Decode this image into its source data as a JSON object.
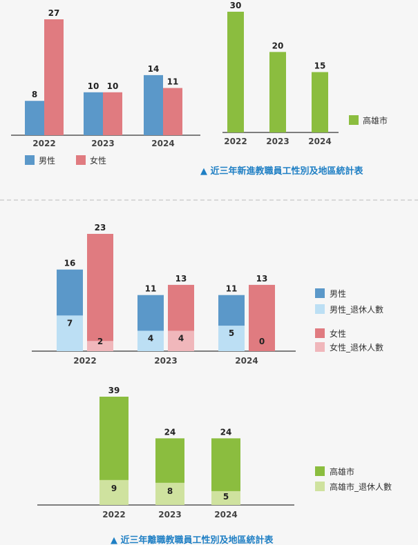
{
  "colors": {
    "male": "#5b98c9",
    "female": "#e07b80",
    "male_retired": "#bcdff4",
    "female_retired": "#f0b7bb",
    "kaohsiung": "#8bbd3f",
    "kaohsiung_retired": "#cfe29f",
    "caption": "#1f7fc4",
    "axis": "#555555",
    "divider": "#bbbbbb"
  },
  "captions": {
    "new_hires": "▲ 近三年新進教職員工性別及地區統計表",
    "departures": "▲ 近三年離職教職員工性別及地區統計表"
  },
  "chart_data": [
    {
      "type": "bar",
      "title": "",
      "categories": [
        "2022",
        "2023",
        "2024"
      ],
      "series": [
        {
          "name": "男性",
          "values": [
            8,
            10,
            14
          ]
        },
        {
          "name": "女性",
          "values": [
            27,
            10,
            11
          ]
        }
      ],
      "ylim": [
        0,
        30
      ],
      "legend": "bottom"
    },
    {
      "type": "bar",
      "title": "",
      "categories": [
        "2022",
        "2023",
        "2024"
      ],
      "series": [
        {
          "name": "高雄市",
          "values": [
            30,
            20,
            15
          ]
        }
      ],
      "ylim": [
        0,
        32
      ],
      "legend": "right"
    },
    {
      "type": "bar",
      "title": "",
      "categories": [
        "2022",
        "2023",
        "2024"
      ],
      "series": [
        {
          "name": "男性",
          "values": [
            16,
            11,
            11
          ]
        },
        {
          "name": "男性_退休人數",
          "values": [
            7,
            4,
            5
          ]
        },
        {
          "name": "女性",
          "values": [
            23,
            13,
            13
          ]
        },
        {
          "name": "女性_退休人數",
          "values": [
            2,
            4,
            0
          ]
        }
      ],
      "ylim": [
        0,
        25
      ],
      "legend": "right"
    },
    {
      "type": "bar",
      "title": "",
      "categories": [
        "2022",
        "2023",
        "2024"
      ],
      "series": [
        {
          "name": "高雄市",
          "values": [
            39,
            24,
            24
          ]
        },
        {
          "name": "高雄市_退休人數",
          "values": [
            9,
            8,
            5
          ]
        }
      ],
      "ylim": [
        0,
        40
      ],
      "legend": "right"
    }
  ]
}
